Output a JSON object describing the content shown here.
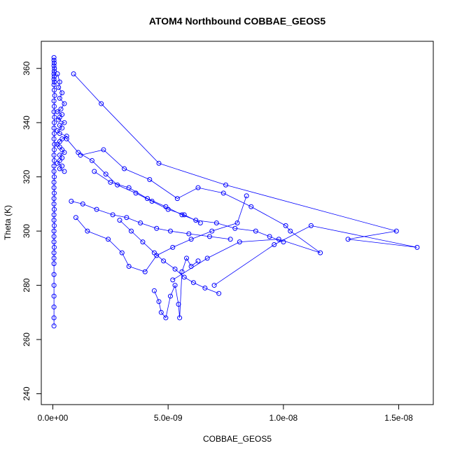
{
  "chart_data": {
    "type": "scatter",
    "title": "ATOM4 Northbound COBBAE_GEOS5",
    "xlabel": "COBBAE_GEOS5",
    "ylabel": "Theta (K)",
    "xlim": [
      -5e-10,
      1.65e-08
    ],
    "ylim": [
      236,
      370
    ],
    "x_ticks": [
      {
        "value": 0,
        "label": "0.0e+00"
      },
      {
        "value": 5e-09,
        "label": "5.0e-09"
      },
      {
        "value": 1e-08,
        "label": "1.0e-08"
      },
      {
        "value": 1.5e-08,
        "label": "1.5e-08"
      }
    ],
    "y_ticks": [
      {
        "value": 240,
        "label": "240"
      },
      {
        "value": 260,
        "label": "260"
      },
      {
        "value": 280,
        "label": "280"
      },
      {
        "value": 300,
        "label": "300"
      },
      {
        "value": 320,
        "label": "320"
      },
      {
        "value": 340,
        "label": "340"
      },
      {
        "value": 360,
        "label": "360"
      }
    ],
    "grid": false,
    "legend": "none",
    "marker": "open-circle",
    "connected": true,
    "color": "#0000ff",
    "series": [
      {
        "x": [
          5e-11,
          5e-11,
          6e-11,
          5e-11,
          7e-11,
          6e-11,
          5e-11,
          6e-11,
          5e-11,
          7e-11,
          5e-11,
          6e-11,
          8e-11,
          5e-11,
          6e-11,
          5e-11,
          7e-11,
          6e-11,
          5e-11,
          6e-11,
          5e-11,
          7e-11,
          6e-11,
          5e-11,
          6e-11,
          5e-11,
          5e-11,
          6e-11,
          5e-11,
          5e-11,
          6e-11,
          5e-11,
          5e-11,
          6e-11,
          5e-11,
          5e-11,
          6e-11,
          5e-11,
          5e-11,
          5e-11,
          6e-11,
          5e-11,
          5e-11,
          5e-11,
          5e-11,
          5e-11,
          5e-11,
          5e-11,
          5e-11,
          5e-11
        ],
        "y": [
          364,
          363,
          362,
          361,
          360,
          359,
          358,
          357,
          356,
          355,
          354,
          352,
          350,
          348,
          346,
          344,
          342,
          340,
          338,
          336,
          334,
          332,
          330,
          328,
          326,
          324,
          322,
          320,
          318,
          316,
          314,
          312,
          310,
          308,
          306,
          304,
          302,
          300,
          298,
          296,
          294,
          292,
          290,
          288,
          284,
          280,
          276,
          272,
          268,
          265
        ]
      },
      {
        "x": [
          2e-10,
          3e-10,
          2.5e-10,
          4e-10,
          3e-10,
          5e-10,
          3.5e-10,
          2e-10,
          4e-10,
          3e-10,
          2.5e-10,
          5e-10,
          3e-10,
          4e-10,
          2e-10,
          3e-10,
          6e-10,
          4e-10,
          3e-10,
          2e-10,
          3e-10,
          4e-10,
          5e-10,
          3e-10,
          4e-10,
          3e-10,
          2e-10,
          4e-10,
          3e-10,
          5e-10
        ],
        "y": [
          358,
          355,
          353,
          351,
          349,
          347,
          345,
          344,
          343,
          342,
          341,
          340,
          339,
          338,
          337,
          336,
          335,
          334,
          333,
          332,
          331,
          330,
          329,
          328,
          327,
          326,
          325,
          324,
          323,
          322
        ]
      },
      {
        "x": [
          9e-10,
          2.1e-09,
          4.6e-09,
          7.5e-09,
          1.49e-08,
          1.28e-08,
          1.58e-08,
          1.12e-08,
          9.6e-09,
          7e-09
        ],
        "y": [
          358,
          347,
          325,
          317,
          300,
          297,
          294,
          302,
          295,
          280
        ]
      },
      {
        "x": [
          1.2e-09,
          2.2e-09,
          3.1e-09,
          4.2e-09,
          5.4e-09,
          6.3e-09,
          7.4e-09,
          8.6e-09,
          1.01e-08,
          1.03e-08,
          1.16e-08,
          9.8e-09,
          8.1e-09,
          6.7e-09,
          5.2e-09
        ],
        "y": [
          328,
          330,
          323,
          319,
          312,
          316,
          314,
          309,
          302,
          300,
          292,
          297,
          296,
          290,
          282
        ]
      },
      {
        "x": [
          1.8e-09,
          2.5e-09,
          3.3e-09,
          4.1e-09,
          4.9e-09,
          5.6e-09,
          6.2e-09,
          7.1e-09,
          7.9e-09,
          8.8e-09,
          9.4e-09,
          1e-08
        ],
        "y": [
          322,
          318,
          316,
          312,
          309,
          306,
          304,
          303,
          301,
          300,
          298,
          296
        ]
      },
      {
        "x": [
          2.9e-09,
          3.4e-09,
          3.9e-09,
          4.4e-09,
          4.8e-09,
          5.3e-09,
          5.7e-09,
          6.1e-09,
          6.6e-09,
          7.2e-09
        ],
        "y": [
          304,
          300,
          296,
          292,
          289,
          286,
          283,
          281,
          279,
          277
        ]
      },
      {
        "x": [
          4.4e-09,
          4.6e-09,
          4.7e-09,
          4.9e-09,
          5.1e-09,
          5.3e-09,
          5.45e-09,
          5.5e-09,
          5.6e-09,
          5.8e-09,
          6e-09,
          6.3e-09
        ],
        "y": [
          278,
          274,
          270,
          268,
          276,
          280,
          273,
          268,
          285,
          290,
          287,
          289
        ]
      },
      {
        "x": [
          8e-10,
          1.3e-09,
          1.9e-09,
          2.6e-09,
          3.2e-09,
          3.8e-09,
          4.5e-09,
          5.1e-09,
          5.9e-09,
          6.8e-09,
          7.7e-09
        ],
        "y": [
          311,
          310,
          308,
          306,
          305,
          303,
          301,
          300,
          299,
          298,
          297
        ]
      },
      {
        "x": [
          6e-10,
          1.1e-09,
          1.7e-09,
          2.3e-09,
          2.8e-09,
          3.6e-09,
          4.3e-09,
          5e-09,
          5.7e-09,
          6.4e-09
        ],
        "y": [
          334,
          329,
          326,
          321,
          317,
          314,
          311,
          308,
          306,
          303
        ]
      },
      {
        "x": [
          1e-09,
          1.5e-09,
          2.4e-09,
          3e-09,
          3.3e-09,
          4e-09,
          4.5e-09,
          5.2e-09,
          6e-09,
          6.9e-09,
          8e-09,
          8.4e-09
        ],
        "y": [
          305,
          300,
          297,
          292,
          287,
          285,
          291,
          294,
          297,
          300,
          303,
          313
        ]
      }
    ]
  }
}
